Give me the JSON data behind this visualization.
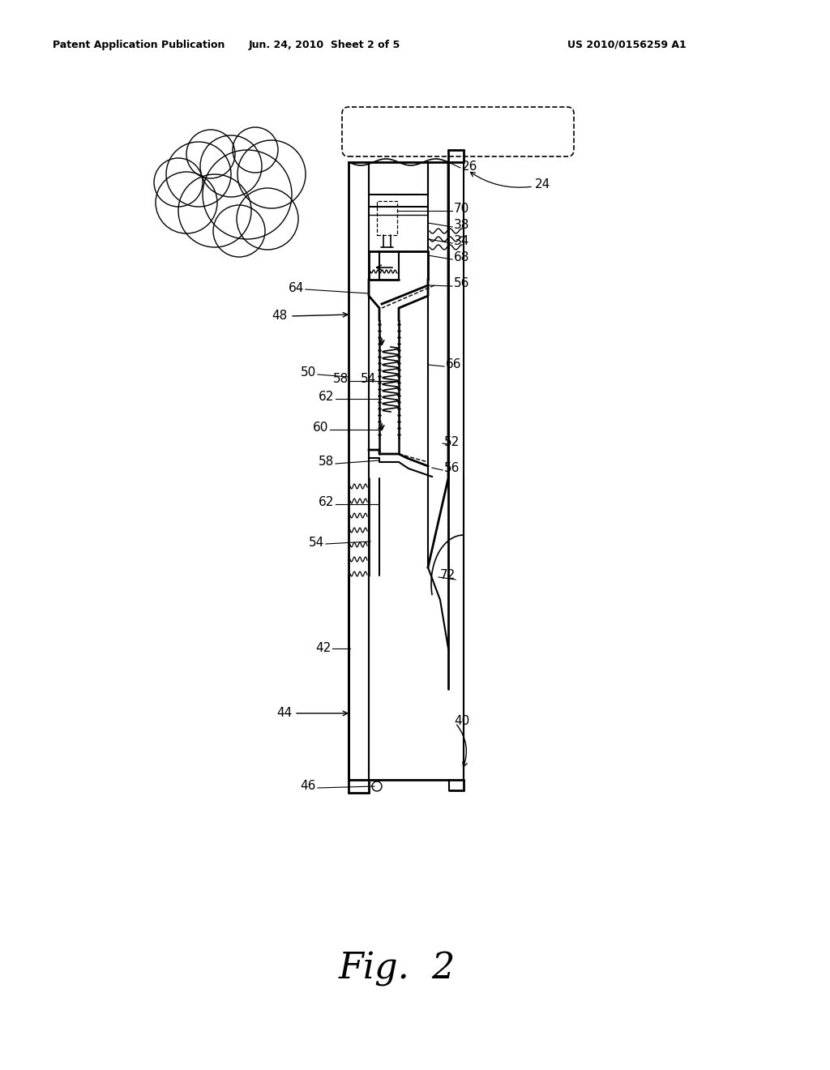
{
  "title": "Fig.  2",
  "header_left": "Patent Application Publication",
  "header_center": "Jun. 24, 2010  Sheet 2 of 5",
  "header_right": "US 2010/0156259 A1",
  "bg_color": "#ffffff",
  "line_color": "#000000"
}
